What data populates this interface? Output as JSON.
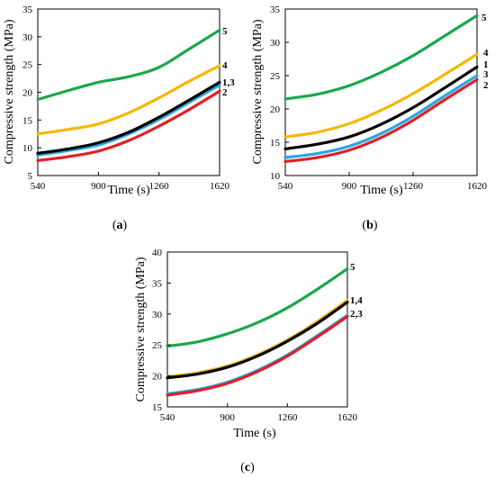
{
  "chart_data": [
    {
      "id": "a",
      "type": "line",
      "panel_label": "a",
      "xlabel": "Time (s)",
      "ylabel": "Compressive strength (MPa)",
      "xlim": [
        540,
        1620
      ],
      "ylim": [
        5,
        35
      ],
      "xticks": [
        540,
        900,
        1260,
        1620
      ],
      "yticks": [
        5,
        10,
        15,
        20,
        25,
        30,
        35
      ],
      "x": [
        540,
        720,
        900,
        1080,
        1260,
        1440,
        1620
      ],
      "series": [
        {
          "name": "5",
          "color": "#1aa84b",
          "values": [
            18.7,
            20.3,
            21.8,
            22.8,
            24.5,
            27.8,
            31.2
          ]
        },
        {
          "name": "4",
          "color": "#f5b800",
          "values": [
            12.5,
            13.3,
            14.3,
            16.3,
            19.0,
            22.0,
            24.8
          ]
        },
        {
          "name": "1",
          "color": "#000000",
          "values": [
            9.0,
            9.8,
            10.9,
            12.8,
            15.5,
            18.6,
            21.8
          ]
        },
        {
          "name": "3",
          "color": "#29a8e0",
          "values": [
            8.7,
            9.5,
            10.5,
            12.5,
            15.1,
            18.2,
            21.3
          ]
        },
        {
          "name": "2",
          "color": "#e31e24",
          "values": [
            7.7,
            8.4,
            9.4,
            11.3,
            13.9,
            16.9,
            20.2
          ]
        }
      ],
      "end_labels": [
        "5",
        "4",
        "1,3",
        "2"
      ]
    },
    {
      "id": "b",
      "type": "line",
      "panel_label": "b",
      "xlabel": "Time (s)",
      "ylabel": "Compressive strength (MPa)",
      "xlim": [
        540,
        1620
      ],
      "ylim": [
        10,
        35
      ],
      "xticks": [
        540,
        900,
        1260,
        1620
      ],
      "yticks": [
        10,
        15,
        20,
        25,
        30,
        35
      ],
      "x": [
        540,
        720,
        900,
        1080,
        1260,
        1440,
        1620
      ],
      "series": [
        {
          "name": "5",
          "color": "#1aa84b",
          "values": [
            21.5,
            22.2,
            23.5,
            25.5,
            28.0,
            31.0,
            34.0
          ]
        },
        {
          "name": "4",
          "color": "#f5b800",
          "values": [
            15.8,
            16.5,
            17.8,
            19.8,
            22.3,
            25.2,
            28.2
          ]
        },
        {
          "name": "1",
          "color": "#000000",
          "values": [
            14.0,
            14.7,
            15.8,
            17.7,
            20.2,
            23.2,
            26.3
          ]
        },
        {
          "name": "3",
          "color": "#29a8e0",
          "values": [
            12.7,
            13.3,
            14.4,
            16.3,
            18.9,
            22.0,
            25.0
          ]
        },
        {
          "name": "2",
          "color": "#e31e24",
          "values": [
            12.1,
            12.7,
            13.8,
            15.7,
            18.3,
            21.4,
            24.4
          ]
        }
      ],
      "end_labels": [
        "5",
        "4",
        "1",
        "3",
        "2"
      ]
    },
    {
      "id": "c",
      "type": "line",
      "panel_label": "c",
      "xlabel": "Time (s)",
      "ylabel": "Compressive strength (MPa)",
      "xlim": [
        540,
        1620
      ],
      "ylim": [
        15,
        40
      ],
      "xticks": [
        540,
        900,
        1260,
        1620
      ],
      "yticks": [
        15,
        20,
        25,
        30,
        35,
        40
      ],
      "x": [
        540,
        720,
        900,
        1080,
        1260,
        1440,
        1620
      ],
      "series": [
        {
          "name": "5",
          "color": "#1aa84b",
          "values": [
            24.8,
            25.5,
            26.8,
            28.6,
            31.0,
            34.0,
            37.3
          ]
        },
        {
          "name": "4",
          "color": "#f5b800",
          "values": [
            19.9,
            20.5,
            21.6,
            23.4,
            25.8,
            28.8,
            32.2
          ]
        },
        {
          "name": "1",
          "color": "#000000",
          "values": [
            19.7,
            20.3,
            21.4,
            23.2,
            25.6,
            28.5,
            31.9
          ]
        },
        {
          "name": "3",
          "color": "#29a8e0",
          "values": [
            17.1,
            17.8,
            19.0,
            20.9,
            23.4,
            26.5,
            29.8
          ]
        },
        {
          "name": "2",
          "color": "#e31e24",
          "values": [
            16.9,
            17.6,
            18.8,
            20.7,
            23.2,
            26.3,
            29.6
          ]
        }
      ],
      "end_labels": [
        "5",
        "1,4",
        "2,3"
      ]
    }
  ]
}
